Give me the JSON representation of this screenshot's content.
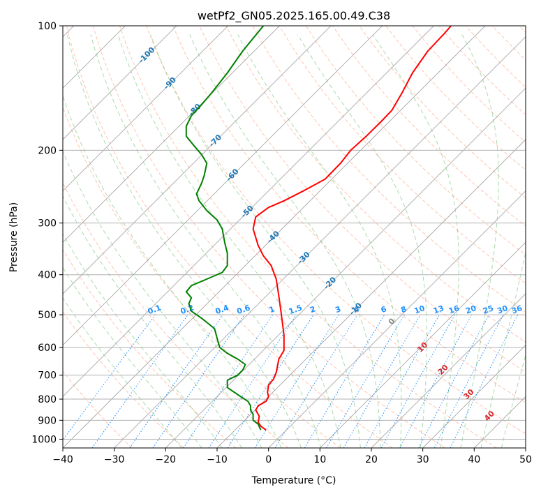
{
  "chart_data": {
    "type": "line",
    "title": "wetPf2_GN05.2025.165.00.49.C38",
    "xlabel": "Temperature (°C)",
    "ylabel": "Pressure (hPa)",
    "xlim": [
      -40,
      50
    ],
    "ylim": [
      1050,
      100
    ],
    "y_scale": "log",
    "x_ticks": [
      "−40",
      "−30",
      "−20",
      "−10",
      "0",
      "10",
      "20",
      "30",
      "40",
      "50"
    ],
    "y_ticks": [
      "100",
      "200",
      "300",
      "400",
      "500",
      "600",
      "700",
      "800",
      "900",
      "1000"
    ],
    "grid": true,
    "colors": {
      "temperature": "#ff0000",
      "dewpoint": "#008000",
      "isotherm_label": "#1f77b4",
      "mixing_ratio": "#1e90ff",
      "dry_adiabat": "#ff7f50",
      "moist_adiabat": "#2ca02c",
      "moist_label": "#d62728"
    },
    "isotherm_labels": [
      "-100",
      "-90",
      "-80",
      "-70",
      "-60",
      "-50",
      "-40",
      "-30",
      "-20",
      "-10"
    ],
    "mixing_ratio_labels": [
      "0.1",
      "0.2",
      "0.4",
      "0.6",
      "1",
      "1.5",
      "2",
      "3",
      "4",
      "6",
      "8",
      "10",
      "13",
      "16",
      "20",
      "25",
      "30",
      "36"
    ],
    "moist_adiabat_labels": [
      "0",
      "10",
      "20",
      "30",
      "40"
    ],
    "series": [
      {
        "color": "#ff0000",
        "points": [
          [
            -0.5,
            950
          ],
          [
            -1.5,
            930
          ],
          [
            -2,
            910
          ],
          [
            -1.8,
            880
          ],
          [
            -2.5,
            850
          ],
          [
            -2,
            830
          ],
          [
            -0.5,
            810
          ],
          [
            0,
            790
          ],
          [
            -0.2,
            770
          ],
          [
            0,
            740
          ],
          [
            1,
            715
          ],
          [
            1.5,
            690
          ],
          [
            1.8,
            660
          ],
          [
            2,
            640
          ],
          [
            3,
            610
          ],
          [
            3,
            560
          ],
          [
            2.5,
            500
          ],
          [
            2,
            450
          ],
          [
            1.5,
            410
          ],
          [
            0.5,
            380
          ],
          [
            -1,
            360
          ],
          [
            -2,
            340
          ],
          [
            -3,
            310
          ],
          [
            -2.5,
            290
          ],
          [
            0,
            275
          ],
          [
            3,
            265
          ],
          [
            7,
            250
          ],
          [
            11,
            235
          ],
          [
            14,
            215
          ],
          [
            16,
            200
          ],
          [
            19,
            185
          ],
          [
            22,
            170
          ],
          [
            24,
            160
          ],
          [
            26,
            145
          ],
          [
            28,
            130
          ],
          [
            31,
            115
          ],
          [
            34,
            105
          ],
          [
            35.5,
            100
          ]
        ]
      },
      {
        "color": "#008000",
        "points": [
          [
            -1.5,
            950
          ],
          [
            -2,
            920
          ],
          [
            -3,
            900
          ],
          [
            -3,
            870
          ],
          [
            -3.5,
            850
          ],
          [
            -3.5,
            830
          ],
          [
            -4,
            810
          ],
          [
            -6,
            780
          ],
          [
            -8,
            750
          ],
          [
            -8,
            720
          ],
          [
            -6,
            700
          ],
          [
            -5,
            680
          ],
          [
            -4.5,
            660
          ],
          [
            -6,
            640
          ],
          [
            -8,
            620
          ],
          [
            -9.5,
            600
          ],
          [
            -10,
            570
          ],
          [
            -10.5,
            540
          ],
          [
            -13,
            510
          ],
          [
            -15,
            490
          ],
          [
            -15.5,
            470
          ],
          [
            -15,
            455
          ],
          [
            -16,
            440
          ],
          [
            -15,
            425
          ],
          [
            -12,
            410
          ],
          [
            -9,
            395
          ],
          [
            -8,
            380
          ],
          [
            -8,
            355
          ],
          [
            -8.5,
            335
          ],
          [
            -9,
            310
          ],
          [
            -10,
            295
          ],
          [
            -12,
            280
          ],
          [
            -13.5,
            265
          ],
          [
            -14,
            255
          ],
          [
            -13,
            240
          ],
          [
            -12.5,
            230
          ],
          [
            -12,
            215
          ],
          [
            -13,
            205
          ],
          [
            -14.5,
            195
          ],
          [
            -16,
            185
          ],
          [
            -16,
            175
          ],
          [
            -15,
            165
          ],
          [
            -13,
            155
          ],
          [
            -11,
            145
          ],
          [
            -8,
            130
          ],
          [
            -5,
            115
          ],
          [
            -1,
            100
          ]
        ]
      }
    ]
  }
}
